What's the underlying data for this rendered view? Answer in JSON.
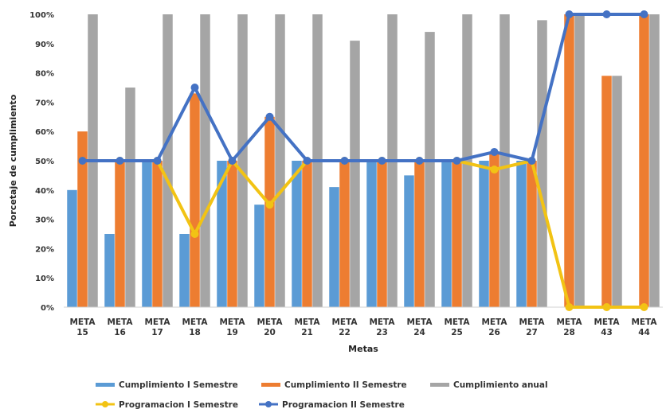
{
  "chart_data": {
    "type": "bar",
    "title": "",
    "xlabel": "Metas",
    "ylabel": "Porcetaje de cumplimiento",
    "ylim": [
      0,
      100
    ],
    "y_ticks": [
      "0%",
      "10%",
      "20%",
      "30%",
      "40%",
      "50%",
      "60%",
      "70%",
      "80%",
      "90%",
      "100%"
    ],
    "grid": false,
    "legend_position": "bottom",
    "categories": [
      [
        "META",
        "15"
      ],
      [
        "META",
        "16"
      ],
      [
        "META",
        "17"
      ],
      [
        "META",
        "18"
      ],
      [
        "META",
        "19"
      ],
      [
        "META",
        "20"
      ],
      [
        "META",
        "21"
      ],
      [
        "META",
        "22"
      ],
      [
        "META",
        "23"
      ],
      [
        "META",
        "24"
      ],
      [
        "META",
        "25"
      ],
      [
        "META",
        "26"
      ],
      [
        "META",
        "27"
      ],
      [
        "META",
        "28"
      ],
      [
        "META",
        "43"
      ],
      [
        "META",
        "44"
      ]
    ],
    "bar_series": [
      {
        "name": "Cumplimiento I Semestre",
        "color": "#5B9BD5",
        "values": [
          40,
          25,
          50,
          25,
          50,
          35,
          50,
          41,
          50,
          45,
          50,
          50,
          50,
          0,
          0,
          0
        ]
      },
      {
        "name": "Cumplimiento II Semestre",
        "color": "#ED7D31",
        "values": [
          60,
          50,
          50,
          73,
          50,
          65,
          50,
          50,
          50,
          50,
          50,
          53,
          50,
          100,
          79,
          100
        ]
      },
      {
        "name": "Cumplimiento anual",
        "color": "#A5A5A5",
        "values": [
          100,
          75,
          100,
          100,
          100,
          100,
          100,
          91,
          100,
          94,
          100,
          100,
          98,
          100,
          79,
          100
        ]
      }
    ],
    "line_series": [
      {
        "name": "Programacion I Semestre",
        "color": "#F2C314",
        "values": [
          50,
          50,
          50,
          25,
          50,
          35,
          50,
          50,
          50,
          50,
          50,
          47,
          50,
          0,
          0,
          0
        ]
      },
      {
        "name": "Programacion II Semestre",
        "color": "#4472C4",
        "values": [
          50,
          50,
          50,
          75,
          50,
          65,
          50,
          50,
          50,
          50,
          50,
          53,
          50,
          100,
          100,
          100
        ]
      }
    ]
  }
}
